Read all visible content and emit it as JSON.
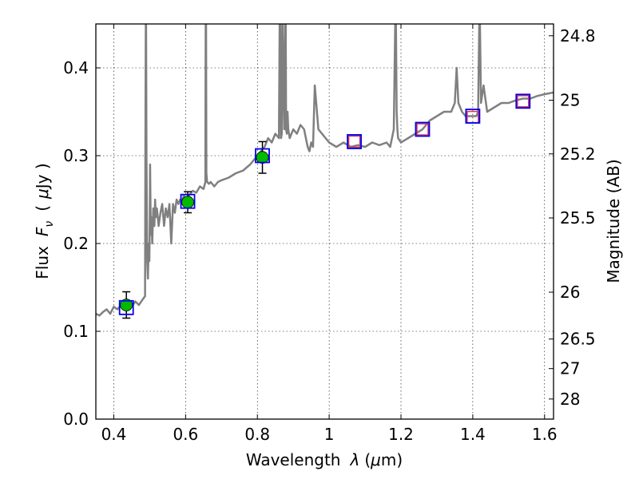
{
  "chart_data": {
    "type": "line",
    "xlabel_text": "Wavelength",
    "xlabel_symbol": "λ",
    "xlabel_unit_open": "(",
    "xlabel_unit_mu": "μ",
    "xlabel_unit_rest": "m)",
    "ylabel_text": "Flux",
    "ylabel_symbol": "F",
    "ylabel_subscript": "ν",
    "ylabel_unit_open": "(",
    "ylabel_unit_mu": "μ",
    "ylabel_unit_rest": "Jy )",
    "y2label": "Magnitude (AB)",
    "xlim": [
      0.35,
      1.625
    ],
    "ylim": [
      0.0,
      0.45
    ],
    "grid": true,
    "xticks": [
      {
        "value": 0.4,
        "label": "0.4"
      },
      {
        "value": 0.6,
        "label": "0.6"
      },
      {
        "value": 0.8,
        "label": "0.8"
      },
      {
        "value": 1.0,
        "label": "1"
      },
      {
        "value": 1.2,
        "label": "1.2"
      },
      {
        "value": 1.4,
        "label": "1.4"
      },
      {
        "value": 1.6,
        "label": "1.6"
      }
    ],
    "yticks": [
      {
        "value": 0.0,
        "label": "0.0"
      },
      {
        "value": 0.1,
        "label": "0.1"
      },
      {
        "value": 0.2,
        "label": "0.2"
      },
      {
        "value": 0.3,
        "label": "0.3"
      },
      {
        "value": 0.4,
        "label": "0.4"
      }
    ],
    "y2ticks": [
      {
        "value": 24.8,
        "label": "24.8"
      },
      {
        "value": 25.0,
        "label": "25"
      },
      {
        "value": 25.2,
        "label": "25.2"
      },
      {
        "value": 25.5,
        "label": "25.5"
      },
      {
        "value": 26.0,
        "label": "26"
      },
      {
        "value": 26.5,
        "label": "26.5"
      },
      {
        "value": 27.0,
        "label": "27"
      },
      {
        "value": 28.0,
        "label": "28"
      }
    ],
    "colors": {
      "spectrum": "#808080",
      "observed": "#00bb00",
      "model_box": "#0000ee",
      "upper_limit": "#dd3355",
      "errorbar": "#000000"
    },
    "spectrum": {
      "x": [
        0.35,
        0.36,
        0.37,
        0.38,
        0.39,
        0.4,
        0.41,
        0.42,
        0.43,
        0.44,
        0.45,
        0.46,
        0.47,
        0.48,
        0.487,
        0.488,
        0.489,
        0.49,
        0.491,
        0.493,
        0.495,
        0.497,
        0.499,
        0.5,
        0.501,
        0.503,
        0.505,
        0.507,
        0.51,
        0.513,
        0.515,
        0.517,
        0.52,
        0.525,
        0.53,
        0.535,
        0.54,
        0.545,
        0.55,
        0.555,
        0.56,
        0.565,
        0.57,
        0.575,
        0.58,
        0.585,
        0.59,
        0.595,
        0.6,
        0.61,
        0.62,
        0.63,
        0.64,
        0.65,
        0.655,
        0.656,
        0.657,
        0.658,
        0.66,
        0.665,
        0.67,
        0.68,
        0.69,
        0.7,
        0.72,
        0.74,
        0.76,
        0.78,
        0.8,
        0.81,
        0.82,
        0.83,
        0.84,
        0.85,
        0.86,
        0.862,
        0.864,
        0.866,
        0.868,
        0.87,
        0.875,
        0.877,
        0.879,
        0.88,
        0.882,
        0.884,
        0.886,
        0.888,
        0.89,
        0.9,
        0.91,
        0.92,
        0.93,
        0.94,
        0.945,
        0.95,
        0.955,
        0.96,
        0.97,
        0.98,
        0.99,
        1.0,
        1.02,
        1.04,
        1.06,
        1.08,
        1.1,
        1.12,
        1.14,
        1.16,
        1.17,
        1.18,
        1.184,
        1.186,
        1.188,
        1.19,
        1.192,
        1.2,
        1.22,
        1.24,
        1.26,
        1.28,
        1.3,
        1.32,
        1.34,
        1.35,
        1.355,
        1.36,
        1.37,
        1.38,
        1.4,
        1.41,
        1.415,
        1.418,
        1.42,
        1.423,
        1.43,
        1.44,
        1.46,
        1.48,
        1.5,
        1.52,
        1.54,
        1.56,
        1.58,
        1.6,
        1.625
      ],
      "y": [
        0.12,
        0.118,
        0.122,
        0.125,
        0.12,
        0.128,
        0.125,
        0.13,
        0.127,
        0.132,
        0.128,
        0.134,
        0.13,
        0.136,
        0.14,
        0.3,
        0.45,
        0.45,
        0.3,
        0.18,
        0.16,
        0.2,
        0.18,
        0.22,
        0.29,
        0.21,
        0.23,
        0.2,
        0.24,
        0.22,
        0.25,
        0.23,
        0.24,
        0.22,
        0.235,
        0.245,
        0.22,
        0.24,
        0.23,
        0.245,
        0.2,
        0.245,
        0.235,
        0.25,
        0.245,
        0.25,
        0.248,
        0.255,
        0.25,
        0.255,
        0.26,
        0.258,
        0.265,
        0.262,
        0.27,
        0.45,
        0.45,
        0.28,
        0.27,
        0.268,
        0.27,
        0.265,
        0.27,
        0.272,
        0.275,
        0.28,
        0.283,
        0.29,
        0.3,
        0.305,
        0.31,
        0.32,
        0.315,
        0.325,
        0.32,
        0.45,
        0.45,
        0.32,
        0.325,
        0.45,
        0.33,
        0.45,
        0.45,
        0.33,
        0.325,
        0.35,
        0.33,
        0.325,
        0.32,
        0.33,
        0.325,
        0.335,
        0.33,
        0.31,
        0.305,
        0.315,
        0.31,
        0.38,
        0.33,
        0.325,
        0.32,
        0.315,
        0.31,
        0.315,
        0.31,
        0.312,
        0.31,
        0.315,
        0.312,
        0.315,
        0.31,
        0.33,
        0.45,
        0.45,
        0.35,
        0.33,
        0.32,
        0.315,
        0.32,
        0.325,
        0.33,
        0.34,
        0.345,
        0.35,
        0.35,
        0.36,
        0.4,
        0.36,
        0.35,
        0.345,
        0.345,
        0.345,
        0.35,
        0.45,
        0.45,
        0.36,
        0.38,
        0.35,
        0.355,
        0.36,
        0.36,
        0.363,
        0.365,
        0.365,
        0.368,
        0.37,
        0.372
      ]
    },
    "observed_points": [
      {
        "x": 0.435,
        "y": 0.13,
        "yerr": 0.015
      },
      {
        "x": 0.606,
        "y": 0.247,
        "yerr": 0.012
      },
      {
        "x": 0.814,
        "y": 0.298,
        "yerr": 0.018
      }
    ],
    "model_boxes": [
      {
        "x": 0.435,
        "y": 0.127
      },
      {
        "x": 0.606,
        "y": 0.248
      },
      {
        "x": 0.814,
        "y": 0.3
      },
      {
        "x": 1.07,
        "y": 0.316
      },
      {
        "x": 1.26,
        "y": 0.33
      },
      {
        "x": 1.4,
        "y": 0.345
      },
      {
        "x": 1.54,
        "y": 0.362
      }
    ],
    "upper_limits": [
      {
        "x": 1.07,
        "y": 0.316
      },
      {
        "x": 1.26,
        "y": 0.33
      },
      {
        "x": 1.4,
        "y": 0.344
      },
      {
        "x": 1.54,
        "y": 0.362
      }
    ]
  }
}
